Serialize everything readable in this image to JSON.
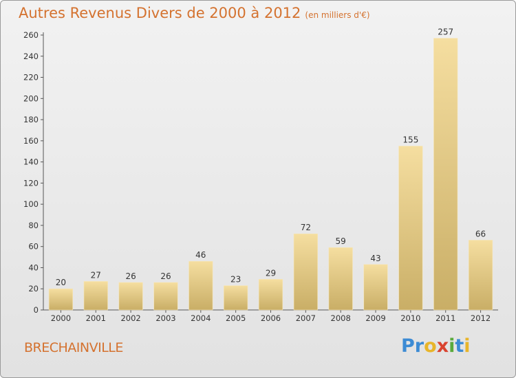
{
  "chart_data": {
    "type": "bar",
    "title": "Autres Revenus Divers de 2000 à 2012",
    "subtitle": "(en milliers d'€)",
    "categories": [
      "2000",
      "2001",
      "2002",
      "2003",
      "2004",
      "2005",
      "2006",
      "2007",
      "2008",
      "2009",
      "2010",
      "2011",
      "2012"
    ],
    "values": [
      20,
      27,
      26,
      26,
      46,
      23,
      29,
      72,
      59,
      43,
      155,
      257,
      66
    ],
    "ylim": [
      0,
      260
    ],
    "yticks": [
      0,
      20,
      40,
      60,
      80,
      100,
      120,
      140,
      160,
      180,
      200,
      220,
      240,
      260
    ],
    "grid": false,
    "colors": {
      "bar_light": "#f5dea0",
      "bar_dark": "#c9ae66",
      "title": "#d4722f"
    }
  },
  "location": "BRECHAINVILLE",
  "logo": {
    "text": "Proxiti",
    "letters": [
      {
        "char": "P",
        "color": "#3c8bd4"
      },
      {
        "char": "r",
        "color": "#3c8bd4"
      },
      {
        "char": "o",
        "color": "#e8b52a"
      },
      {
        "char": "x",
        "color": "#d9432f"
      },
      {
        "char": "i",
        "color": "#5aaa3c"
      },
      {
        "char": "t",
        "color": "#3c8bd4"
      },
      {
        "char": "i",
        "color": "#e8b52a"
      }
    ]
  }
}
